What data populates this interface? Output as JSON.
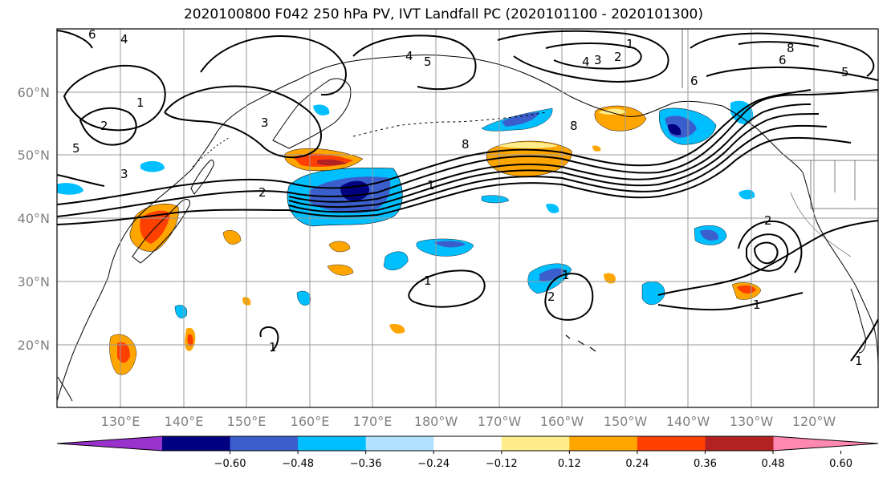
{
  "title": "2020100800 F042 250 hPa PV, IVT Landfall PC (2020101100 - 2020101300)",
  "latitude_labels": [
    "60°N",
    "50°N",
    "40°N",
    "30°N",
    "20°N"
  ],
  "longitude_labels": [
    "130°E",
    "140°E",
    "150°E",
    "160°E",
    "170°E",
    "180°W",
    "170°W",
    "160°W",
    "150°W",
    "140°W",
    "130°W",
    "120°W"
  ],
  "colorbar": {
    "ticks": [
      "−0.60",
      "−0.48",
      "−0.36",
      "−0.24",
      "−0.12",
      "0.12",
      "0.24",
      "0.36",
      "0.48",
      "0.60"
    ],
    "colors": [
      "#9932cc",
      "#000080",
      "#3a5fcd",
      "#00bfff",
      "#b0e2ff",
      "#ffffff",
      "#ffec8b",
      "#ffa500",
      "#ff4000",
      "#b22222",
      "#ff88b0"
    ]
  },
  "contour_labels": [
    "1",
    "2",
    "3",
    "4",
    "5",
    "6",
    "8"
  ],
  "colors": {
    "negative_strong": "#000080",
    "negative": "#00bfff",
    "positive": "#ffa500",
    "positive_strong": "#ff4000"
  }
}
